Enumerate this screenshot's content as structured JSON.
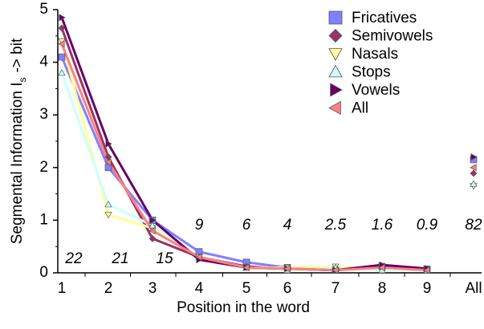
{
  "chart_data": {
    "type": "line",
    "ylabel": "Segmental Information I",
    "ylabel_subscript": "s",
    "ylabel_suffix": "-> bit",
    "xlabel": "Position in the word",
    "categories": [
      "1",
      "2",
      "3",
      "4",
      "5",
      "6",
      "7",
      "8",
      "9",
      "All"
    ],
    "ylim": [
      0,
      5
    ],
    "yticks": [
      0,
      1,
      2,
      3,
      4,
      5
    ],
    "series": [
      {
        "name": "Fricatives",
        "color": "#8080ff",
        "marker": "square",
        "values": [
          4.1,
          2.0,
          1.0,
          0.4,
          0.2,
          0.1,
          0.05,
          0.12,
          0.07,
          2.15
        ]
      },
      {
        "name": "Semivowels",
        "color": "#993366",
        "marker": "diamond",
        "values": [
          4.65,
          2.2,
          0.65,
          0.3,
          0.12,
          0.08,
          0.05,
          0.12,
          0.07,
          1.89
        ]
      },
      {
        "name": "Nasals",
        "color": "#ffff99",
        "marker": "triangle-down",
        "values": [
          4.4,
          1.1,
          0.85,
          0.3,
          0.1,
          0.1,
          0.12,
          0.08,
          0.05,
          1.65
        ]
      },
      {
        "name": "Stops",
        "color": "#ccffff",
        "marker": "triangle-up",
        "values": [
          3.8,
          1.3,
          0.9,
          0.3,
          0.1,
          0.05,
          0.1,
          0.05,
          0.05,
          1.69
        ]
      },
      {
        "name": "Vowels",
        "color": "#660066",
        "marker": "triangle-right",
        "values": [
          4.85,
          2.45,
          1.0,
          0.25,
          0.1,
          0.08,
          0.05,
          0.15,
          0.08,
          2.2
        ]
      },
      {
        "name": "All",
        "color": "#ff8080",
        "marker": "triangle-left",
        "values": [
          4.35,
          2.1,
          0.8,
          0.3,
          0.1,
          0.08,
          0.05,
          0.1,
          0.05,
          2.0
        ]
      }
    ],
    "annotations": [
      "22",
      "21",
      "15",
      "9",
      "6",
      "4",
      "2.5",
      "1.6",
      "0.9",
      "82"
    ]
  }
}
